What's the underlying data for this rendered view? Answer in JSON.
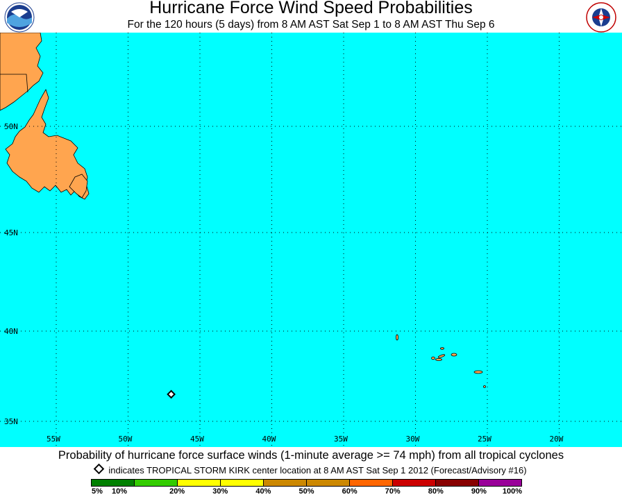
{
  "header": {
    "title": "Hurricane Force Wind Speed Probabilities",
    "subtitle": "For the 120 hours (5 days) from 8 AM AST Sat Sep 1 to 8 AM AST Thu Sep 6"
  },
  "logos": {
    "left": "NOAA",
    "right": "NATIONAL WEATHER SERVICE"
  },
  "map": {
    "colors": {
      "ocean": "#00ffff",
      "land": "#ffa54f",
      "grid": "#000000"
    },
    "latitude_labels": [
      "50N",
      "45N",
      "40N",
      "35N"
    ],
    "longitude_labels": [
      "55W",
      "50W",
      "45W",
      "40W",
      "35W",
      "30W",
      "25W",
      "20W"
    ],
    "storm_marker": {
      "icon": "diamond-icon",
      "lat": 36.5,
      "lon": -47.0
    }
  },
  "footer": {
    "caption": "Probability of hurricane force surface winds (1-minute average >= 74 mph) from all tropical cyclones",
    "legend_note": "indicates TROPICAL STORM KIRK center location at 8 AM AST Sat Sep 1 2012 (Forecast/Advisory #16)"
  },
  "scale": {
    "colors": [
      "#008000",
      "#33cc00",
      "#ffff00",
      "#ffff00",
      "#cc8800",
      "#cc8800",
      "#ff6600",
      "#cc0000",
      "#880000",
      "#990099"
    ],
    "labels": [
      "5%",
      "10%",
      "20%",
      "30%",
      "40%",
      "50%",
      "60%",
      "70%",
      "80%",
      "90%",
      "100%"
    ]
  }
}
